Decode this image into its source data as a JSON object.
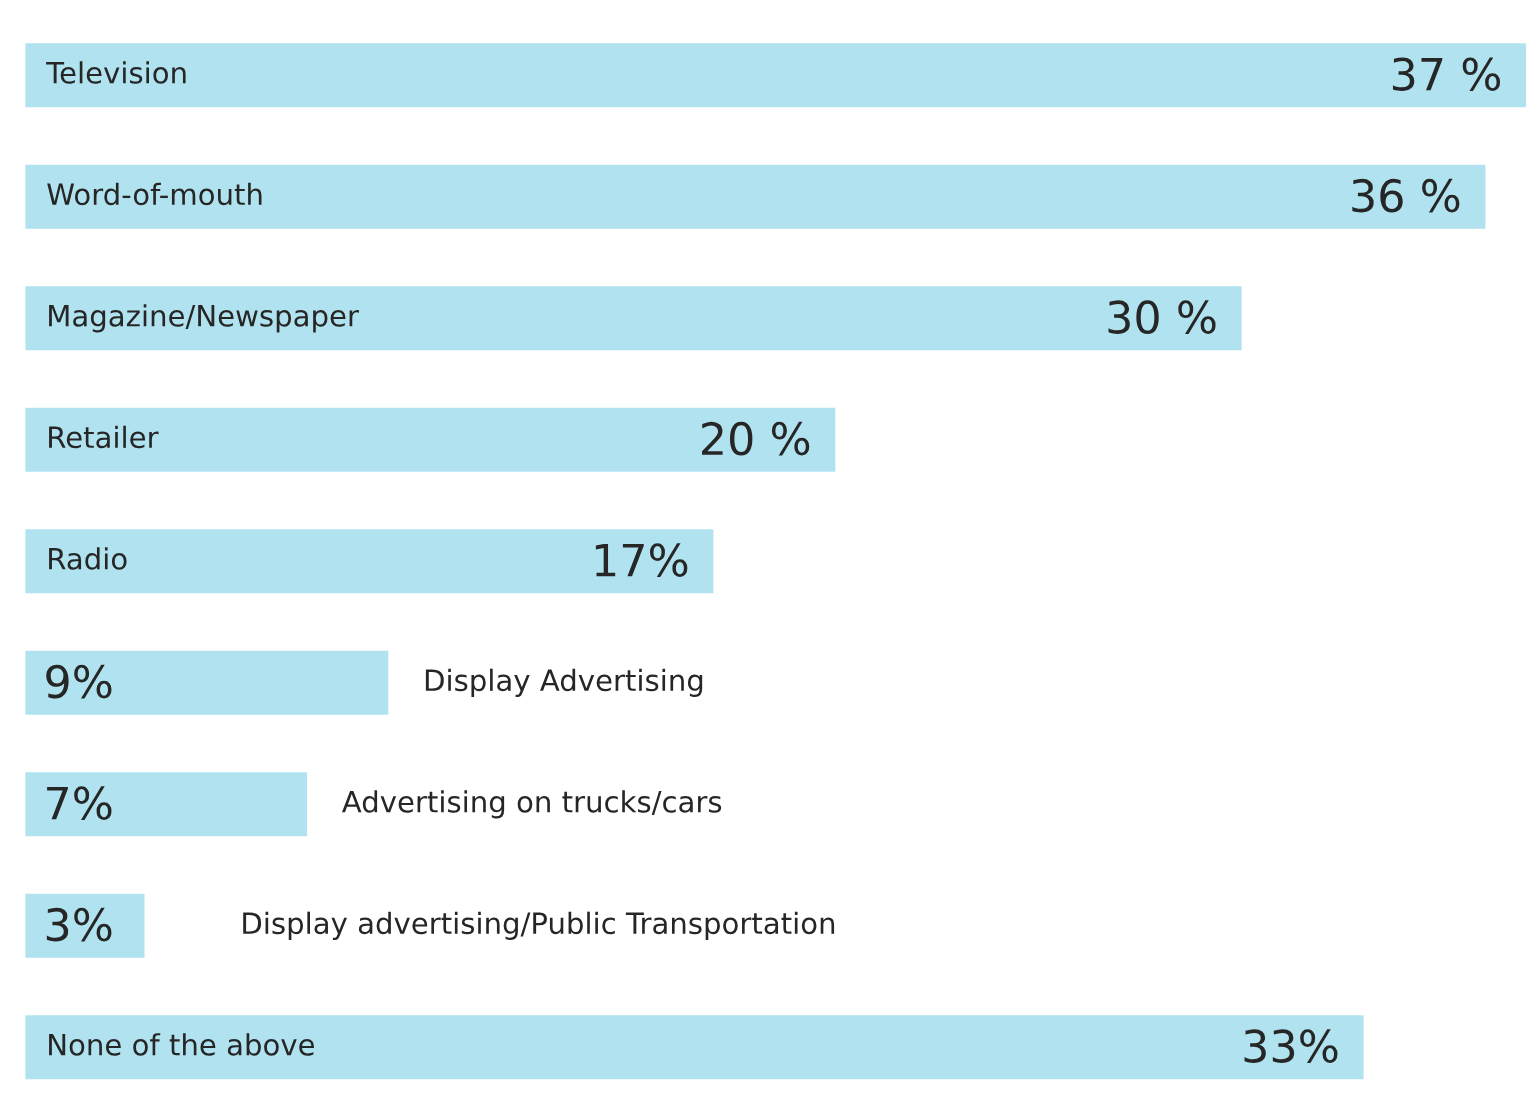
{
  "chart_data": {
    "type": "bar",
    "orientation": "horizontal",
    "categories": [
      "Television",
      "Word-of-mouth",
      "Magazine/Newspaper",
      "Retailer",
      "Radio",
      "Display Advertising",
      "Advertising on trucks/cars",
      "Display advertising/Public Transportation",
      "None of the above"
    ],
    "values": [
      37,
      36,
      30,
      20,
      17,
      9,
      7,
      3,
      33
    ],
    "color": "#b0e3ef",
    "data_labels": true,
    "value_labels": [
      "37 %",
      "36 %",
      "30 %",
      "20 %",
      "17%",
      "9%",
      "7%",
      "3%",
      "33%"
    ]
  }
}
